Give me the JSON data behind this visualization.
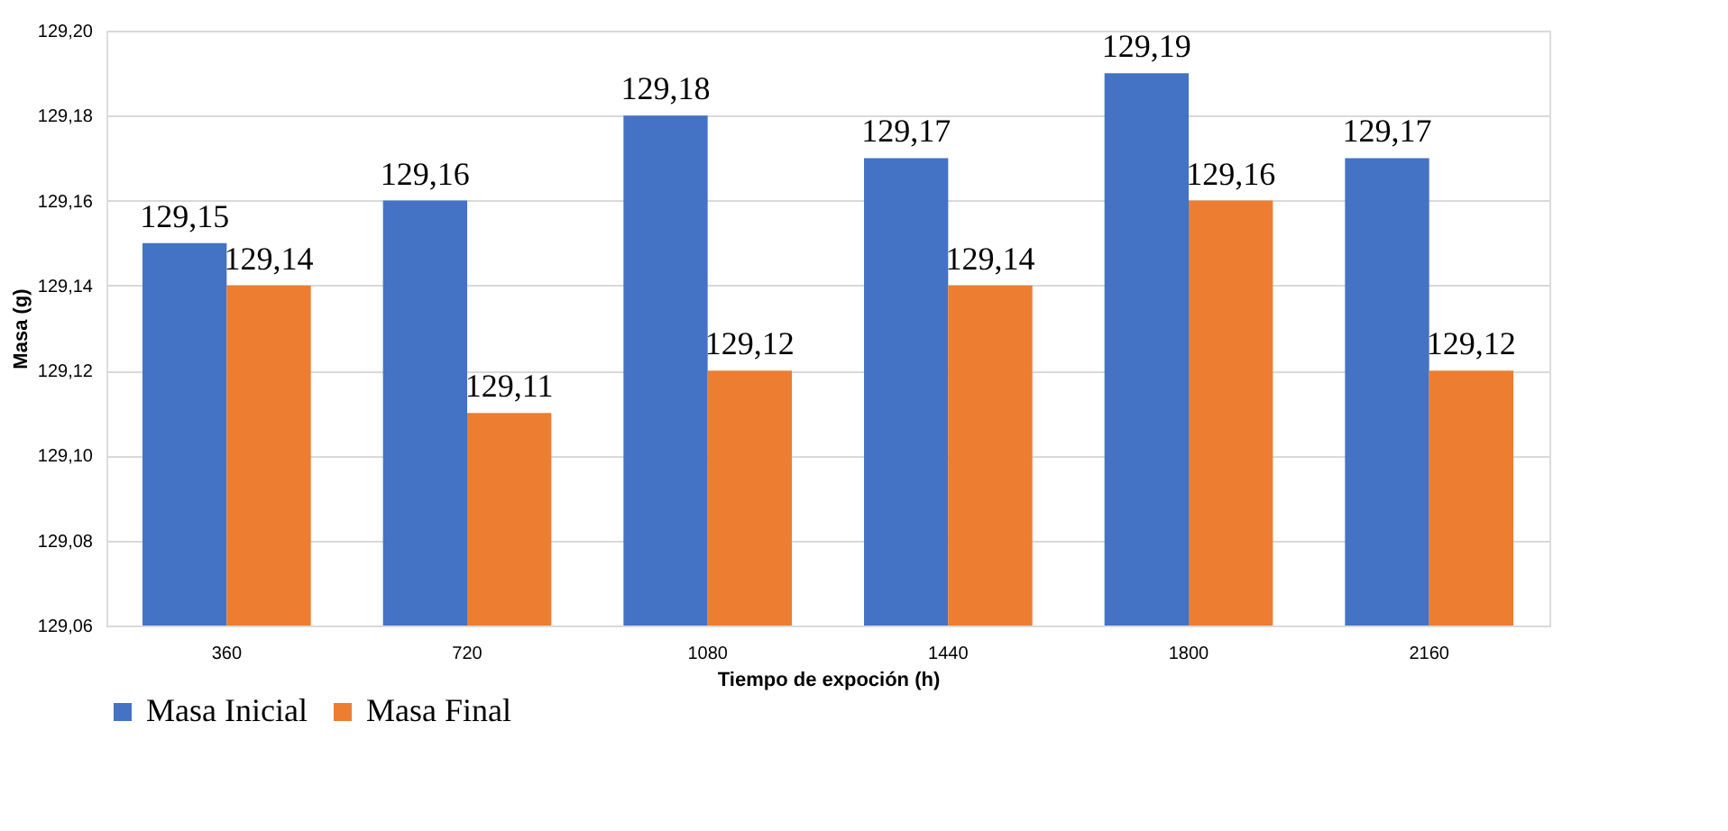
{
  "chart_data": {
    "type": "bar",
    "xlabel": "Tiempo de expoción (h)",
    "ylabel": "Masa (g)",
    "categories": [
      "360",
      "720",
      "1080",
      "1440",
      "1800",
      "2160"
    ],
    "series": [
      {
        "name": "Masa Inicial",
        "color": "#4472c4",
        "values": [
          129.15,
          129.16,
          129.18,
          129.17,
          129.19,
          129.17
        ],
        "value_labels": [
          "129,15",
          "129,16",
          "129,18",
          "129,17",
          "129,19",
          "129,17"
        ]
      },
      {
        "name": "Masa Final",
        "color": "#ed7d31",
        "values": [
          129.14,
          129.11,
          129.12,
          129.14,
          129.16,
          129.12
        ],
        "value_labels": [
          "129,14",
          "129,11",
          "129,12",
          "129,14",
          "129,16",
          "129,12"
        ]
      }
    ],
    "ylim": [
      129.06,
      129.2
    ],
    "yticks": [
      {
        "value": 129.06,
        "label": "129,06"
      },
      {
        "value": 129.08,
        "label": "129,08"
      },
      {
        "value": 129.1,
        "label": "129,10"
      },
      {
        "value": 129.12,
        "label": "129,12"
      },
      {
        "value": 129.14,
        "label": "129,14"
      },
      {
        "value": 129.16,
        "label": "129,16"
      },
      {
        "value": 129.18,
        "label": "129,18"
      },
      {
        "value": 129.2,
        "label": "129,20"
      }
    ],
    "grid": "y",
    "legend": "bottom"
  }
}
